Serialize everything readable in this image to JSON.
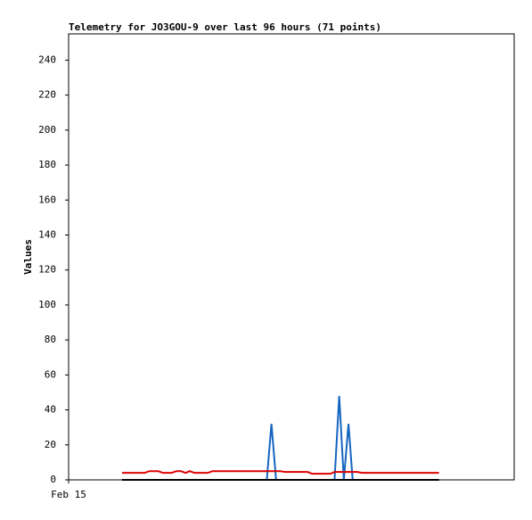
{
  "chart_data": {
    "type": "line",
    "title": "Telemetry for JO3GOU-9 over last 96 hours (71 points)",
    "y_label": "Values",
    "x": [
      11.5,
      12.5,
      13.5,
      14.4,
      15.4,
      16.4,
      17.4,
      18.3,
      19.3,
      20.3,
      21.3,
      22.2,
      23.2,
      24.2,
      25.2,
      26.1,
      27.1,
      28.1,
      29.1,
      30.0,
      31.0,
      32.0,
      33.0,
      33.9,
      34.9,
      35.9,
      36.9,
      37.8,
      38.8,
      39.8,
      40.8,
      41.7,
      42.7,
      43.7,
      44.7,
      45.6,
      46.6,
      47.6,
      48.6,
      49.5,
      50.5,
      51.5,
      52.5,
      53.4,
      54.4,
      55.4,
      56.4,
      57.3,
      58.3,
      59.3,
      60.3,
      61.2,
      62.2,
      63.2,
      64.2,
      65.1,
      66.1,
      67.1,
      68.1,
      69.0,
      70.0,
      71.0,
      72.0,
      72.9,
      73.9,
      74.9,
      75.9,
      76.8,
      77.8,
      78.8,
      79.8
    ],
    "series": [
      {
        "color": "#1565c0",
        "values": [
          0,
          0,
          0,
          0,
          0,
          0,
          0,
          0,
          0,
          0,
          0,
          0,
          0,
          0,
          0,
          0,
          0,
          0,
          0,
          0,
          0,
          0,
          0,
          0,
          0,
          0,
          0,
          0,
          0,
          0,
          0,
          0,
          0,
          32,
          0,
          0,
          0,
          0,
          0,
          0,
          0,
          0,
          0,
          0,
          0,
          0,
          0,
          0,
          48,
          0,
          32,
          0,
          0,
          0,
          0,
          0,
          0,
          0,
          0,
          0,
          0,
          0,
          0,
          0,
          0,
          0,
          0,
          0,
          0,
          0,
          0
        ]
      },
      {
        "color": "#dd0000",
        "values": [
          4,
          4,
          4,
          4,
          4,
          4,
          5,
          5,
          5,
          4,
          4,
          4,
          5,
          5,
          4,
          5,
          4,
          4,
          4,
          4,
          5,
          5,
          5,
          5,
          5,
          5,
          5,
          5,
          5,
          5,
          5,
          5,
          5,
          5,
          5,
          5,
          4.5,
          4.5,
          4.5,
          4.5,
          4.5,
          4.5,
          3.5,
          3.5,
          3.5,
          3.5,
          3.5,
          4.5,
          4.5,
          4.5,
          4.5,
          4.5,
          4.5,
          4,
          4,
          4,
          4,
          4,
          4,
          4,
          4,
          4,
          4,
          4,
          4,
          4,
          4,
          4,
          4,
          4,
          4
        ]
      },
      {
        "color": "#000000",
        "values": [
          0,
          0,
          0,
          0,
          0,
          0,
          0,
          0,
          0,
          0,
          0,
          0,
          0,
          0,
          0,
          0,
          0,
          0,
          0,
          0,
          0,
          0,
          0,
          0,
          0,
          0,
          0,
          0,
          0,
          0,
          0,
          0,
          0,
          0,
          0,
          0,
          0,
          0,
          0,
          0,
          0,
          0,
          0,
          0,
          0,
          0,
          0,
          0,
          0,
          0,
          0,
          0,
          0,
          0,
          0,
          0,
          0,
          0,
          0,
          0,
          0,
          0,
          0,
          0,
          0,
          0,
          0,
          0,
          0,
          0,
          0
        ]
      }
    ],
    "xlim": [
      0,
      96
    ],
    "xticks": [
      {
        "value": 0,
        "label": "Feb 15"
      }
    ],
    "ylim": [
      0,
      255
    ],
    "yticks": [
      0,
      20,
      40,
      60,
      80,
      100,
      120,
      140,
      160,
      180,
      200,
      220,
      240
    ]
  }
}
